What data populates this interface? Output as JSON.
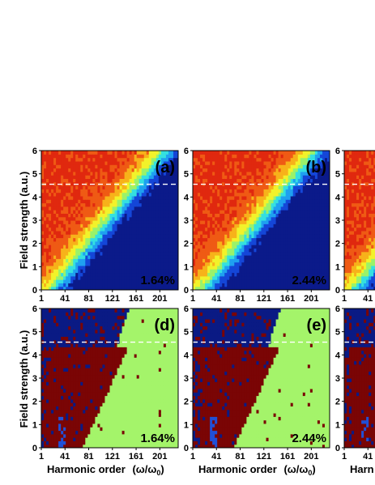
{
  "chart_data": {
    "type": "heatmap",
    "xlabel_main": "Harmonic order",
    "xlabel_unit": "(ω/ω",
    "xlabel_sub": "0",
    "xlabel_close": ")",
    "ylabel": "Field strength (a.u.)",
    "x_ticks": [
      "1",
      "41",
      "81",
      "121",
      "161",
      "201"
    ],
    "y_ticks": [
      "0",
      "1",
      "2",
      "3",
      "4",
      "5",
      "6"
    ],
    "xlim": [
      1,
      232
    ],
    "ylim": [
      0,
      6
    ],
    "reference_line_y": 4.55,
    "panels": [
      {
        "label": "(a)",
        "value": "1.64%",
        "row": "top",
        "col": 0
      },
      {
        "label": "(b)",
        "value": "2.44%",
        "row": "top",
        "col": 1
      },
      {
        "label": "",
        "value": "",
        "row": "top",
        "col": 2
      },
      {
        "label": "(d)",
        "value": "1.64%",
        "row": "bottom",
        "col": 0
      },
      {
        "label": "(e)",
        "value": "2.44%",
        "row": "bottom",
        "col": 1
      },
      {
        "label": "",
        "value": "",
        "row": "bottom",
        "col": 2
      }
    ],
    "third_column_x_ticks": [
      "1",
      "41"
    ],
    "third_column_xlabel": "Harn",
    "colors": {
      "top_scale": [
        "#0b1a8a",
        "#1446d8",
        "#1fa0f0",
        "#34e0e0",
        "#9af26a",
        "#f2f22a",
        "#f7b21a",
        "#ef5a14",
        "#e0280f"
      ],
      "bottom_green": "#a4f46a",
      "bottom_maroon": "#7a0505",
      "bottom_navy": "#0a1a84",
      "bottom_blue": "#2050d8",
      "dashed_line": "#ffffff"
    }
  }
}
